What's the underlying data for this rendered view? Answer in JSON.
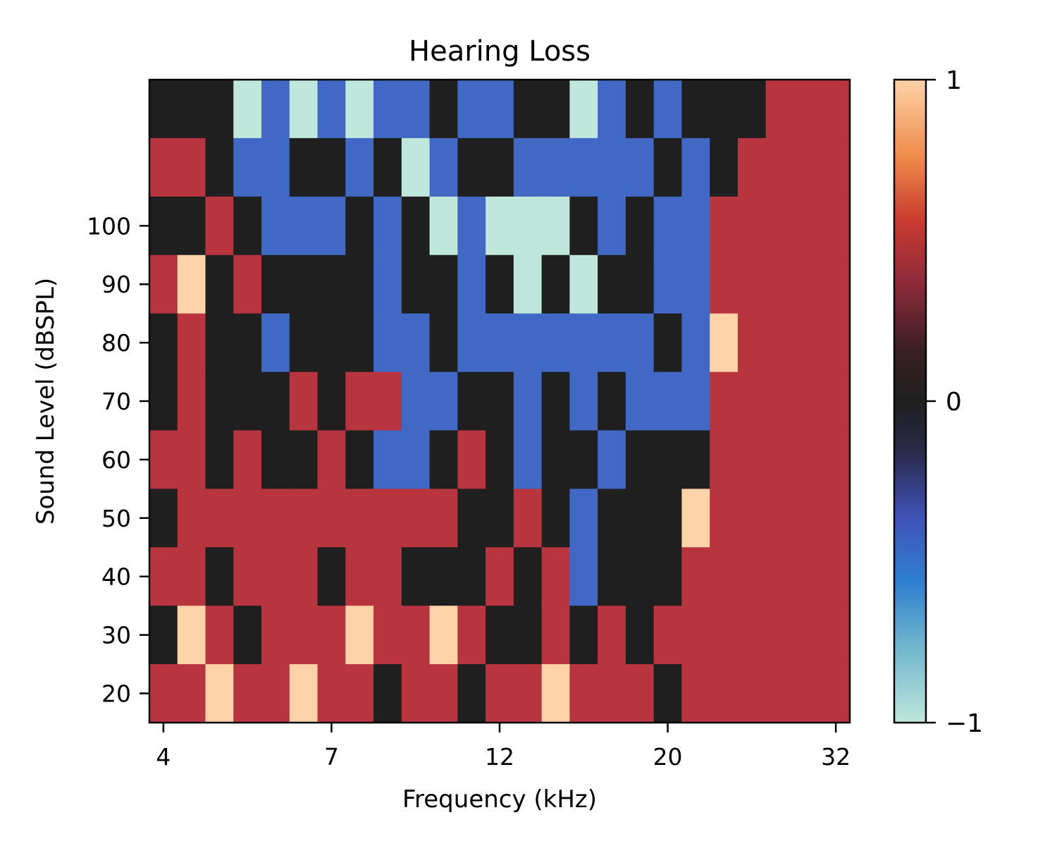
{
  "chart_data": {
    "type": "heatmap",
    "title": "Hearing Loss",
    "xlabel": "Frequency (kHz)",
    "ylabel": "Sound Level (dBSPL)",
    "x_tick_labels": [
      "4",
      "7",
      "12",
      "20",
      "32"
    ],
    "x_tick_columns": [
      0.5,
      6.5,
      12.5,
      18.5,
      24.5
    ],
    "y_tick_labels": [
      "20",
      "30",
      "40",
      "50",
      "60",
      "70",
      "80",
      "90",
      "100"
    ],
    "colorbar": {
      "min": -1,
      "max": 1,
      "tick_labels": [
        "1",
        "0",
        "−1"
      ],
      "tick_values": [
        1,
        0,
        -1
      ]
    },
    "value_colors": {
      "-1": "#bfe7dc",
      "-0.5": "#4268c6",
      "0": "#1f1f1f",
      "0.5": "#b8343f",
      "1": "#fed3aa"
    },
    "rows_top_to_bottom": [
      [
        0,
        0,
        0,
        -1,
        -0.5,
        -1,
        -0.5,
        -1,
        -0.5,
        -0.5,
        0,
        -0.5,
        -0.5,
        0,
        0,
        -1,
        -0.5,
        0,
        -0.5,
        0,
        0,
        0,
        0.5,
        0.5,
        0.5
      ],
      [
        0.5,
        0.5,
        0,
        -0.5,
        -0.5,
        0,
        0,
        -0.5,
        0,
        -1,
        -0.5,
        0,
        0,
        -0.5,
        -0.5,
        -0.5,
        -0.5,
        -0.5,
        0,
        -0.5,
        0,
        0.5,
        0.5,
        0.5,
        0.5
      ],
      [
        0,
        0,
        0.5,
        0,
        -0.5,
        -0.5,
        -0.5,
        0,
        -0.5,
        0,
        -1,
        -0.5,
        -1,
        -1,
        -1,
        0,
        -0.5,
        0,
        -0.5,
        -0.5,
        0.5,
        0.5,
        0.5,
        0.5,
        0.5
      ],
      [
        0.5,
        1,
        0,
        0.5,
        0,
        0,
        0,
        0,
        -0.5,
        0,
        0,
        -0.5,
        0,
        -1,
        0,
        -1,
        0,
        0,
        -0.5,
        -0.5,
        0.5,
        0.5,
        0.5,
        0.5,
        0.5
      ],
      [
        0,
        0.5,
        0,
        0,
        -0.5,
        0,
        0,
        0,
        -0.5,
        -0.5,
        0,
        -0.5,
        -0.5,
        -0.5,
        -0.5,
        -0.5,
        -0.5,
        -0.5,
        0,
        -0.5,
        1,
        0.5,
        0.5,
        0.5,
        0.5
      ],
      [
        0,
        0.5,
        0,
        0,
        0,
        0.5,
        0,
        0.5,
        0.5,
        -0.5,
        -0.5,
        0,
        0,
        -0.5,
        0,
        -0.5,
        0,
        -0.5,
        -0.5,
        -0.5,
        0.5,
        0.5,
        0.5,
        0.5,
        0.5
      ],
      [
        0.5,
        0.5,
        0,
        0.5,
        0,
        0,
        0.5,
        0,
        -0.5,
        -0.5,
        0,
        0.5,
        0,
        -0.5,
        0,
        0,
        -0.5,
        0,
        0,
        0,
        0.5,
        0.5,
        0.5,
        0.5,
        0.5
      ],
      [
        0,
        0.5,
        0.5,
        0.5,
        0.5,
        0.5,
        0.5,
        0.5,
        0.5,
        0.5,
        0.5,
        0,
        0,
        0.5,
        0,
        -0.5,
        0,
        0,
        0,
        1,
        0.5,
        0.5,
        0.5,
        0.5,
        0.5
      ],
      [
        0.5,
        0.5,
        0,
        0.5,
        0.5,
        0.5,
        0,
        0.5,
        0.5,
        0,
        0,
        0,
        0.5,
        0,
        0.5,
        -0.5,
        0,
        0,
        0,
        0.5,
        0.5,
        0.5,
        0.5,
        0.5,
        0.5
      ],
      [
        0,
        1,
        0.5,
        0,
        0.5,
        0.5,
        0.5,
        1,
        0.5,
        0.5,
        1,
        0.5,
        0,
        0,
        0.5,
        0,
        0.5,
        0,
        0.5,
        0.5,
        0.5,
        0.5,
        0.5,
        0.5,
        0.5
      ],
      [
        0.5,
        0.5,
        1,
        0.5,
        0.5,
        1,
        0.5,
        0.5,
        0,
        0.5,
        0.5,
        0,
        0.5,
        0.5,
        1,
        0.5,
        0.5,
        0.5,
        0,
        0.5,
        0.5,
        0.5,
        0.5,
        0.5,
        0.5
      ]
    ]
  }
}
